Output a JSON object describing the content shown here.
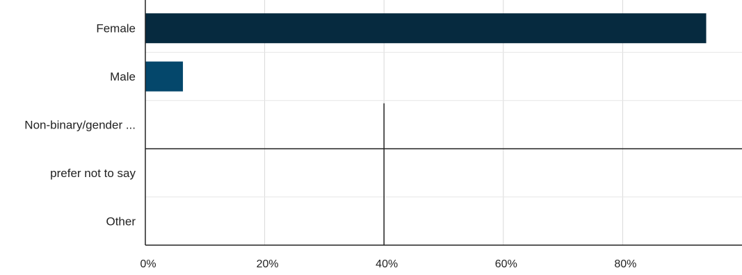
{
  "chart_data": {
    "type": "bar",
    "orientation": "horizontal",
    "categories": [
      "Female",
      "Male",
      "Non-binary/gender ...",
      "prefer not to say",
      "Other"
    ],
    "values": [
      94,
      6.3,
      0,
      0,
      0
    ],
    "xlim": [
      0,
      100
    ],
    "xticks": [
      0,
      20,
      40,
      60,
      80
    ],
    "xtick_labels": [
      "0%",
      "20%",
      "40%",
      "60%",
      "80%"
    ],
    "grid": true,
    "legend": "none",
    "colors": [
      "#062a3f",
      "#04476b",
      "#04476b",
      "#04476b",
      "#04476b"
    ]
  }
}
